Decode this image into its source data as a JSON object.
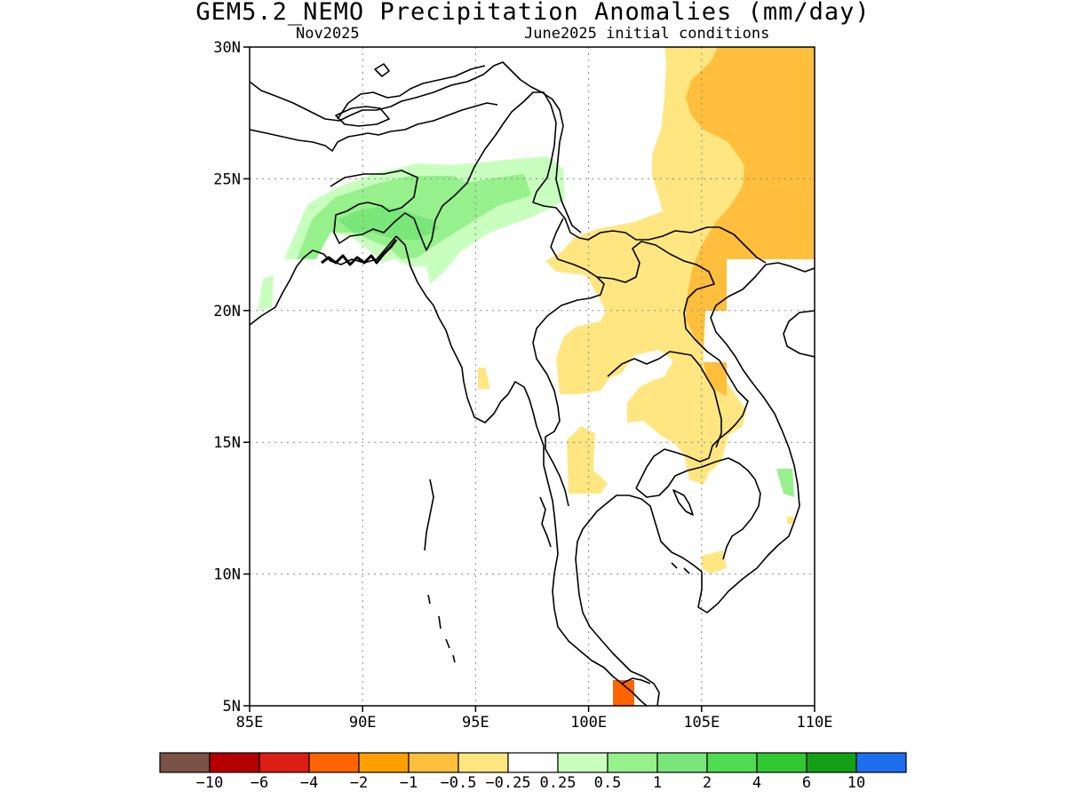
{
  "map": {
    "title": "GEM5.2_NEMO Precipitation Anomalies (mm/day)",
    "subtitle_left": "Nov2025",
    "subtitle_right": "June2025 initial conditions",
    "lon_range": [
      85,
      110
    ],
    "lat_range": [
      5,
      30
    ],
    "x_ticks": [
      "85E",
      "90E",
      "95E",
      "100E",
      "105E",
      "110E"
    ],
    "y_ticks": [
      "5N",
      "10N",
      "15N",
      "20N",
      "25N",
      "30N"
    ],
    "grid": "dotted"
  },
  "colorbar": {
    "labels": [
      "−10",
      "−6",
      "−4",
      "−2",
      "−1",
      "−0.5",
      "−0.25",
      "0.25",
      "0.5",
      "1",
      "2",
      "4",
      "6",
      "10"
    ],
    "colors": [
      "#7a5246",
      "#b40000",
      "#dc1e14",
      "#ff6400",
      "#ffa000",
      "#ffbe3c",
      "#ffe680",
      "#ffffff",
      "#c8ffbe",
      "#96f08c",
      "#78e678",
      "#50dc50",
      "#32c832",
      "#14a014",
      "#1e6ef0"
    ]
  },
  "legend_colors": {
    "dry_light": "#ffe680",
    "dry_mod": "#ffbe3c",
    "dry_strong": "#ff6400",
    "wet_light": "#c8ffbe",
    "wet_mod": "#96f08c",
    "wet_strong": "#78e678"
  }
}
